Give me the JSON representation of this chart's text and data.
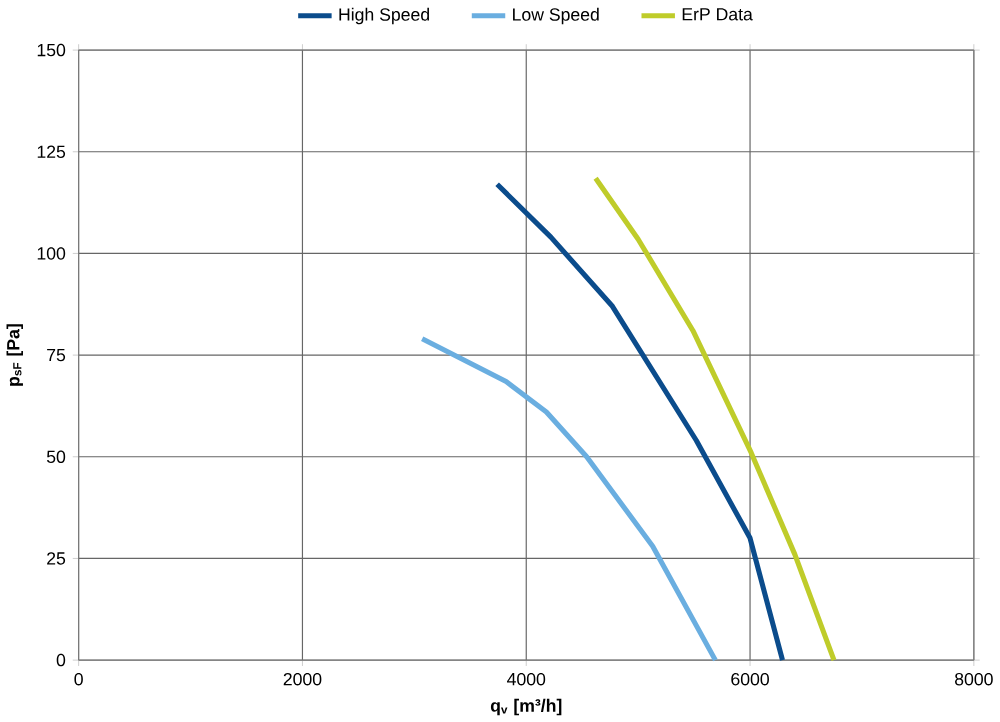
{
  "chart_data": {
    "type": "line",
    "xlabel": "q$_{v}$ [m³/h]",
    "ylabel": "p$_{sF}$ [Pa]",
    "xlim": [
      0,
      8000
    ],
    "xticks": [
      0,
      2000,
      4000,
      6000,
      8000
    ],
    "ylim": [
      0,
      150
    ],
    "yticks": [
      0,
      25,
      50,
      75,
      100,
      125,
      150
    ],
    "grid": true,
    "legend": "top",
    "marker": "none",
    "line_style": "solid",
    "series": [
      {
        "name": "High Speed",
        "color": "#0b4c8c",
        "x": [
          3740,
          4220,
          4770,
          5520,
          5920,
          6000,
          6290
        ],
        "values": [
          117,
          104,
          87,
          54,
          34,
          30,
          0
        ]
      },
      {
        "name": "Low Speed",
        "color": "#6aaee0",
        "x": [
          3070,
          3820,
          4180,
          4540,
          5130,
          5690
        ],
        "values": [
          79,
          68.5,
          61,
          50,
          28,
          0
        ]
      },
      {
        "name": "ErP Data",
        "color": "#bfcc2a",
        "x": [
          4620,
          5000,
          5490,
          6010,
          6400,
          6750
        ],
        "values": [
          118.5,
          103.5,
          81,
          51,
          26,
          0
        ]
      }
    ]
  }
}
